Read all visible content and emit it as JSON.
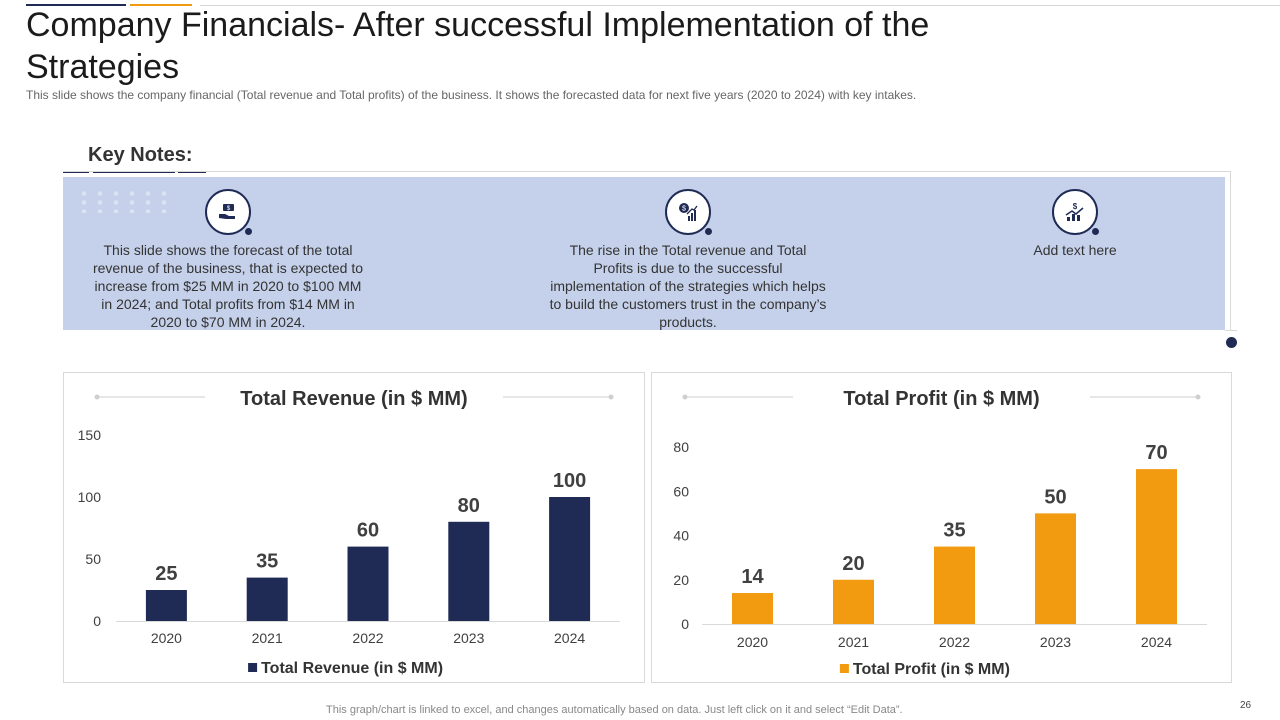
{
  "title": "Company Financials- After successful Implementation of the Strategies",
  "subtitle": "This slide shows the company financial (Total revenue  and Total profits) of the business. It shows the forecasted data for next five  years (2020  to 2024) with key intakes.",
  "key_notes": {
    "heading": "Key Notes:",
    "items": [
      {
        "icon": "hand-money-icon",
        "text": "This slide shows the forecast of the total revenue of the business, that is expected to increase from $25 MM  in 2020 to $100 MM  in 2024; and Total profits from $14 MM  in 2020 to $70 MM  in 2024."
      },
      {
        "icon": "dollar-growth-chart-icon",
        "text": "The rise in the Total revenue and Total Profits is due to the successful implementation of the strategies which helps to build the customers trust in the company’s products."
      },
      {
        "icon": "dollar-trend-up-icon",
        "text": "Add text here"
      }
    ]
  },
  "colors": {
    "navy": "#1f2b55",
    "orange": "#f29b11"
  },
  "chart_data": [
    {
      "type": "bar",
      "title": "Total Revenue (in $ MM)",
      "categories": [
        "2020",
        "2021",
        "2022",
        "2023",
        "2024"
      ],
      "series": [
        {
          "name": "Total Revenue (in $ MM)",
          "values": [
            25,
            35,
            60,
            80,
            100
          ],
          "color": "#1f2b55"
        }
      ],
      "ylim": [
        0,
        150
      ],
      "yticks": [
        0,
        50,
        100,
        150
      ],
      "legend": "bottom",
      "grid": false
    },
    {
      "type": "bar",
      "title": "Total Profit (in $ MM)",
      "categories": [
        "2020",
        "2021",
        "2022",
        "2023",
        "2024"
      ],
      "series": [
        {
          "name": "Total Profit (in $ MM)",
          "values": [
            14,
            20,
            35,
            50,
            70
          ],
          "color": "#f29b11"
        }
      ],
      "ylim": [
        0,
        80
      ],
      "yticks": [
        0,
        20,
        40,
        60,
        80
      ],
      "legend": "bottom",
      "grid": false
    }
  ],
  "footer": "This graph/chart is linked to excel,  and changes automatically based on data. Just left click on it and select “Edit Data”.",
  "page_number": "26"
}
